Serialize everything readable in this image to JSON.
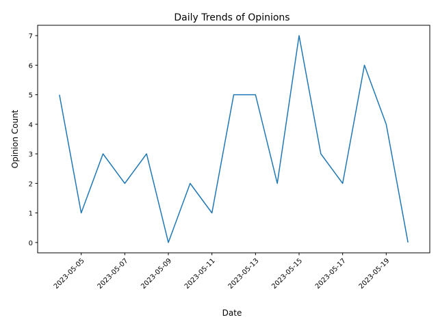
{
  "chart_data": {
    "type": "line",
    "title": "Daily Trends of Opinions",
    "xlabel": "Date",
    "ylabel": "Opinion Count",
    "x": [
      "2023-05-04",
      "2023-05-05",
      "2023-05-06",
      "2023-05-07",
      "2023-05-08",
      "2023-05-09",
      "2023-05-10",
      "2023-05-11",
      "2023-05-12",
      "2023-05-13",
      "2023-05-14",
      "2023-05-15",
      "2023-05-16",
      "2023-05-17",
      "2023-05-18",
      "2023-05-19",
      "2023-05-20"
    ],
    "series": [
      {
        "values": [
          5,
          1,
          3,
          2,
          3,
          0,
          2,
          1,
          5,
          5,
          2,
          7,
          3,
          2,
          6,
          4,
          0
        ],
        "color": "#1f77b4"
      }
    ],
    "xticks": [
      "2023-05-05",
      "2023-05-07",
      "2023-05-09",
      "2023-05-11",
      "2023-05-13",
      "2023-05-15",
      "2023-05-17",
      "2023-05-19"
    ],
    "xtick_rotation_deg": 45,
    "yticks": [
      0,
      1,
      2,
      3,
      4,
      5,
      6,
      7
    ],
    "xlim": [
      "2023-05-03",
      "2023-05-21"
    ],
    "ylim": [
      -0.35,
      7.35
    ],
    "grid": false,
    "legend": false
  }
}
